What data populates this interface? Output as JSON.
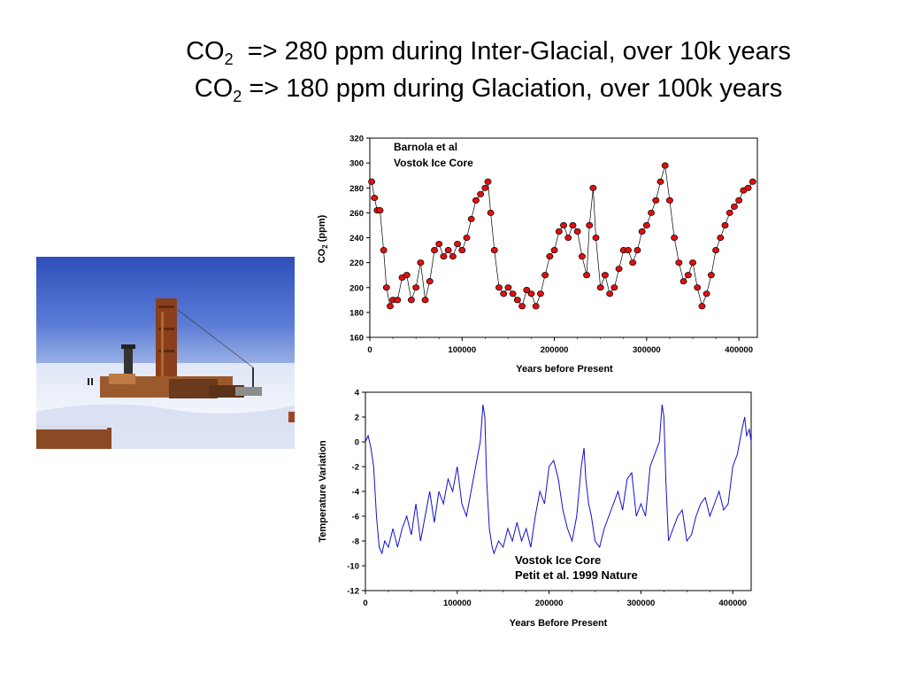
{
  "slide": {
    "title_line1": {
      "prefix": "CO",
      "sub": "2",
      "suffix": "  => 280 ppm during Inter-Glacial, over 10k years"
    },
    "title_line2": {
      "prefix": "CO",
      "sub": "2",
      "suffix": " => 180 ppm during Glaciation, over 100k years"
    }
  },
  "colors": {
    "co2_marker": "#e01010",
    "temp_line": "#1010d0",
    "sky": "#3f63c9",
    "snow": "#eef2fb",
    "tower": "#8a3f1c"
  },
  "chart_data": [
    {
      "type": "scatter",
      "annotation_lines": [
        "Barnola et al",
        "Vostok Ice Core"
      ],
      "xlabel": "Years before Present",
      "ylabel_main": "CO",
      "ylabel_sub": "2",
      "ylabel_suffix": " (ppm)",
      "xlim": [
        0,
        420000
      ],
      "ylim": [
        160,
        320
      ],
      "xticks": [
        0,
        100000,
        200000,
        300000,
        400000
      ],
      "yticks": [
        160,
        180,
        200,
        220,
        240,
        260,
        280,
        300,
        320
      ],
      "series": [
        {
          "marker": "circle",
          "connected": true,
          "x": [
            2000,
            5000,
            8000,
            11000,
            15000,
            18000,
            22000,
            25000,
            30000,
            35000,
            40000,
            45000,
            50000,
            55000,
            60000,
            65000,
            70000,
            75000,
            80000,
            85000,
            90000,
            95000,
            100000,
            105000,
            110000,
            115000,
            120000,
            125000,
            128000,
            131000,
            135000,
            140000,
            145000,
            150000,
            155000,
            160000,
            165000,
            170000,
            175000,
            180000,
            185000,
            190000,
            195000,
            200000,
            205000,
            210000,
            215000,
            220000,
            225000,
            230000,
            235000,
            238000,
            242000,
            245000,
            250000,
            255000,
            260000,
            265000,
            270000,
            275000,
            280000,
            285000,
            290000,
            295000,
            300000,
            305000,
            310000,
            315000,
            320000,
            325000,
            330000,
            335000,
            340000,
            345000,
            350000,
            355000,
            360000,
            365000,
            370000,
            375000,
            380000,
            385000,
            390000,
            395000,
            400000,
            405000,
            410000,
            415000
          ],
          "y": [
            285,
            272,
            262,
            262,
            230,
            200,
            185,
            190,
            190,
            208,
            210,
            190,
            200,
            220,
            190,
            205,
            230,
            235,
            225,
            230,
            225,
            235,
            230,
            240,
            255,
            270,
            275,
            280,
            285,
            260,
            230,
            200,
            195,
            200,
            195,
            190,
            185,
            198,
            195,
            185,
            195,
            210,
            225,
            230,
            245,
            250,
            240,
            250,
            245,
            225,
            210,
            250,
            280,
            240,
            200,
            210,
            195,
            200,
            215,
            230,
            230,
            220,
            230,
            245,
            250,
            260,
            270,
            285,
            298,
            270,
            240,
            220,
            205,
            210,
            220,
            200,
            185,
            195,
            210,
            230,
            240,
            250,
            260,
            265,
            270,
            278,
            280,
            285
          ]
        }
      ]
    },
    {
      "type": "line",
      "annotation_lines": [
        "Vostok Ice Core",
        "Petit et al. 1999 Nature"
      ],
      "xlabel": "Years Before Present",
      "ylabel": "Temperature Variation",
      "xlim": [
        0,
        420000
      ],
      "ylim": [
        -12,
        4
      ],
      "xticks": [
        0,
        100000,
        200000,
        300000,
        400000
      ],
      "yticks": [
        4,
        2,
        0,
        -2,
        -4,
        -6,
        -8,
        -10,
        -12
      ],
      "series": [
        {
          "x": [
            0,
            3000,
            6000,
            9000,
            12000,
            15000,
            18000,
            21000,
            25000,
            30000,
            35000,
            40000,
            45000,
            50000,
            55000,
            60000,
            65000,
            70000,
            75000,
            80000,
            85000,
            90000,
            95000,
            100000,
            105000,
            110000,
            115000,
            120000,
            125000,
            128000,
            130000,
            132000,
            135000,
            138000,
            140000,
            145000,
            150000,
            155000,
            160000,
            165000,
            170000,
            175000,
            180000,
            185000,
            190000,
            195000,
            200000,
            205000,
            210000,
            215000,
            220000,
            225000,
            230000,
            235000,
            238000,
            240000,
            243000,
            246000,
            250000,
            255000,
            260000,
            265000,
            270000,
            275000,
            280000,
            285000,
            290000,
            295000,
            300000,
            305000,
            310000,
            315000,
            320000,
            323000,
            325000,
            327000,
            330000,
            335000,
            340000,
            345000,
            350000,
            355000,
            360000,
            365000,
            370000,
            375000,
            380000,
            385000,
            390000,
            395000,
            400000,
            405000,
            410000,
            413000,
            415000,
            418000,
            420000
          ],
          "y": [
            0,
            0.5,
            -0.5,
            -2,
            -6,
            -8.5,
            -9,
            -8,
            -8.5,
            -7,
            -8.5,
            -7,
            -6,
            -7.5,
            -5,
            -8,
            -6,
            -4,
            -6.5,
            -4,
            -5,
            -3,
            -4,
            -2,
            -5,
            -6,
            -4,
            -2,
            0,
            3,
            2,
            -3,
            -7,
            -8.5,
            -9,
            -8,
            -8.5,
            -7,
            -8,
            -6.5,
            -8,
            -7,
            -8.5,
            -6,
            -4,
            -5,
            -2,
            -1.5,
            -3,
            -5.5,
            -7,
            -8,
            -6,
            -2,
            -0.5,
            -3,
            -5,
            -6,
            -8,
            -8.5,
            -7,
            -6,
            -5,
            -4,
            -5.5,
            -3,
            -2.5,
            -6,
            -5,
            -6,
            -2,
            -1,
            0,
            3,
            2,
            -3,
            -8,
            -7,
            -6,
            -5.5,
            -8,
            -7.5,
            -6,
            -5,
            -4.5,
            -6,
            -5,
            -4,
            -5.5,
            -5,
            -2,
            -1,
            1,
            2,
            0.5,
            1,
            0
          ]
        }
      ]
    }
  ]
}
